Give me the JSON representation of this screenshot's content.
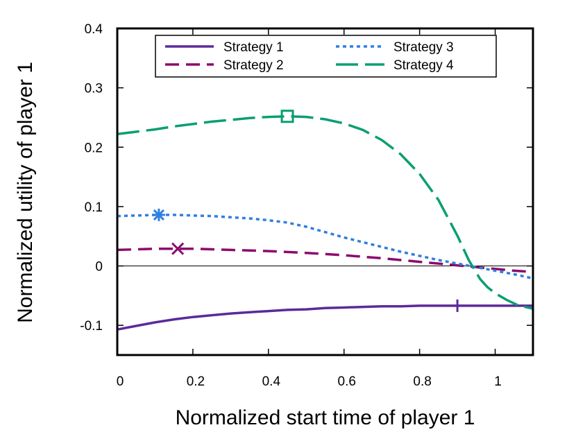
{
  "chart_data": {
    "type": "line",
    "title": "",
    "xlabel": "Normalized start time of player 1",
    "ylabel": "Normalized utility of player 1",
    "xlim": [
      0,
      1.1
    ],
    "ylim": [
      -0.15,
      0.4
    ],
    "x_ticks": [
      0,
      0.2,
      0.4,
      0.6,
      0.8,
      1
    ],
    "x_tick_labels": [
      "0",
      "0.2",
      "0.4",
      "0.6",
      "0.8",
      "1"
    ],
    "y_ticks": [
      -0.1,
      0,
      0.1,
      0.2,
      0.3,
      0.4
    ],
    "y_tick_labels": [
      "-0.1",
      "0",
      "0.1",
      "0.2",
      "0.3",
      "0.4"
    ],
    "grid": false,
    "zero_line": true,
    "legend_position": "top",
    "series": [
      {
        "name": "Strategy 1",
        "color": "#5b2a9a",
        "style": "solid",
        "marker": "plus",
        "marker_point": [
          0.9,
          -0.067
        ],
        "x": [
          0,
          0.05,
          0.1,
          0.15,
          0.2,
          0.25,
          0.3,
          0.35,
          0.4,
          0.45,
          0.5,
          0.55,
          0.6,
          0.65,
          0.7,
          0.75,
          0.8,
          0.85,
          0.9,
          0.95,
          1.0,
          1.05,
          1.1
        ],
        "y": [
          -0.107,
          -0.101,
          -0.095,
          -0.09,
          -0.086,
          -0.083,
          -0.08,
          -0.078,
          -0.076,
          -0.074,
          -0.073,
          -0.071,
          -0.07,
          -0.069,
          -0.068,
          -0.068,
          -0.067,
          -0.067,
          -0.067,
          -0.067,
          -0.067,
          -0.067,
          -0.067
        ]
      },
      {
        "name": "Strategy 2",
        "color": "#8b0a6e",
        "style": "dashed",
        "marker": "cross",
        "marker_point": [
          0.16,
          0.029
        ],
        "x": [
          0,
          0.05,
          0.1,
          0.16,
          0.2,
          0.3,
          0.4,
          0.5,
          0.6,
          0.7,
          0.8,
          0.85,
          0.9,
          0.95,
          1.0,
          1.05,
          1.1
        ],
        "y": [
          0.027,
          0.028,
          0.029,
          0.029,
          0.029,
          0.027,
          0.025,
          0.022,
          0.018,
          0.013,
          0.007,
          0.004,
          0.001,
          -0.002,
          -0.005,
          -0.008,
          -0.01
        ]
      },
      {
        "name": "Strategy 3",
        "color": "#2f7fe0",
        "style": "dotted",
        "marker": "star",
        "marker_point": [
          0.11,
          0.086
        ],
        "x": [
          0,
          0.05,
          0.11,
          0.15,
          0.2,
          0.25,
          0.3,
          0.35,
          0.4,
          0.45,
          0.5,
          0.55,
          0.6,
          0.65,
          0.7,
          0.75,
          0.8,
          0.85,
          0.9,
          0.95,
          1.0,
          1.05,
          1.1
        ],
        "y": [
          0.084,
          0.085,
          0.086,
          0.086,
          0.085,
          0.084,
          0.082,
          0.08,
          0.077,
          0.073,
          0.066,
          0.057,
          0.048,
          0.04,
          0.032,
          0.024,
          0.017,
          0.01,
          0.004,
          -0.002,
          -0.008,
          -0.014,
          -0.021
        ]
      },
      {
        "name": "Strategy 4",
        "color": "#0a9e73",
        "style": "long-dash",
        "marker": "square",
        "marker_point": [
          0.45,
          0.252
        ],
        "x": [
          0,
          0.05,
          0.1,
          0.15,
          0.2,
          0.25,
          0.3,
          0.35,
          0.4,
          0.45,
          0.5,
          0.55,
          0.6,
          0.65,
          0.7,
          0.75,
          0.8,
          0.85,
          0.9,
          0.93,
          0.96,
          0.98,
          1.0,
          1.03,
          1.06,
          1.1
        ],
        "y": [
          0.222,
          0.226,
          0.23,
          0.235,
          0.239,
          0.243,
          0.246,
          0.249,
          0.251,
          0.252,
          0.251,
          0.247,
          0.24,
          0.229,
          0.212,
          0.188,
          0.155,
          0.111,
          0.051,
          0.01,
          -0.022,
          -0.036,
          -0.046,
          -0.057,
          -0.066,
          -0.072
        ]
      }
    ]
  }
}
